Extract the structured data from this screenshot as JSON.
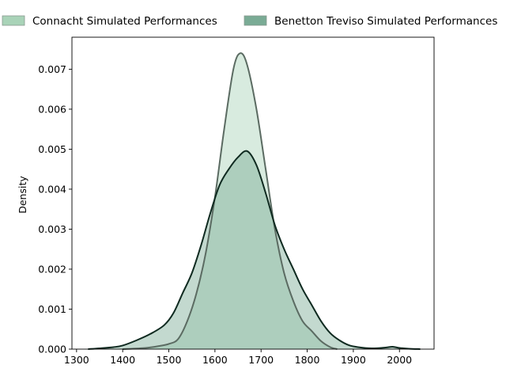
{
  "chart_data": {
    "type": "area",
    "title": "",
    "xlabel": "",
    "ylabel": "Density",
    "xlim": [
      1290,
      2075
    ],
    "ylim": [
      0,
      0.0078
    ],
    "x_ticks": [
      1300,
      1400,
      1500,
      1600,
      1700,
      1800,
      1900,
      2000
    ],
    "y_ticks": [
      0.0,
      0.001,
      0.002,
      0.003,
      0.004,
      0.005,
      0.006,
      0.007
    ],
    "y_tick_labels": [
      "0.000",
      "0.001",
      "0.002",
      "0.003",
      "0.004",
      "0.005",
      "0.006",
      "0.007"
    ],
    "grid": false,
    "legend_position": "top-center",
    "series": [
      {
        "name": "Connacht Simulated Performances",
        "fill": "#a9d3b8",
        "fill_opacity": 0.45,
        "line": "#5b6b62",
        "x": [
          1400,
          1450,
          1480,
          1500,
          1520,
          1540,
          1560,
          1580,
          1600,
          1620,
          1640,
          1655,
          1670,
          1690,
          1710,
          1730,
          1750,
          1770,
          1790,
          1810,
          1830,
          1850,
          1865
        ],
        "y": [
          0.0,
          3e-05,
          8e-05,
          0.00013,
          0.00025,
          0.0007,
          0.0014,
          0.0024,
          0.0038,
          0.0055,
          0.007,
          0.0074,
          0.0071,
          0.006,
          0.0045,
          0.003,
          0.0019,
          0.0012,
          0.0007,
          0.00045,
          0.0002,
          5e-05,
          0.0
        ]
      },
      {
        "name": "Benetton Treviso Simulated Performances",
        "fill": "#7aab95",
        "fill_opacity": 0.45,
        "line": "#0f2a20",
        "x": [
          1325,
          1350,
          1380,
          1400,
          1430,
          1460,
          1490,
          1510,
          1530,
          1550,
          1570,
          1590,
          1610,
          1630,
          1650,
          1670,
          1690,
          1710,
          1730,
          1750,
          1770,
          1790,
          1810,
          1830,
          1850,
          1870,
          1890,
          1910,
          1940,
          1970,
          1985,
          2000,
          2020,
          2045
        ],
        "y": [
          0.0,
          2e-05,
          5e-05,
          9e-05,
          0.00022,
          0.00038,
          0.0006,
          0.0009,
          0.0014,
          0.0019,
          0.0026,
          0.0034,
          0.0041,
          0.0045,
          0.0048,
          0.00495,
          0.0046,
          0.0039,
          0.0031,
          0.0025,
          0.002,
          0.0015,
          0.0011,
          0.0007,
          0.0004,
          0.00022,
          0.0001,
          5e-05,
          2e-05,
          4e-05,
          6e-05,
          3e-05,
          1e-05,
          0.0
        ]
      }
    ]
  }
}
